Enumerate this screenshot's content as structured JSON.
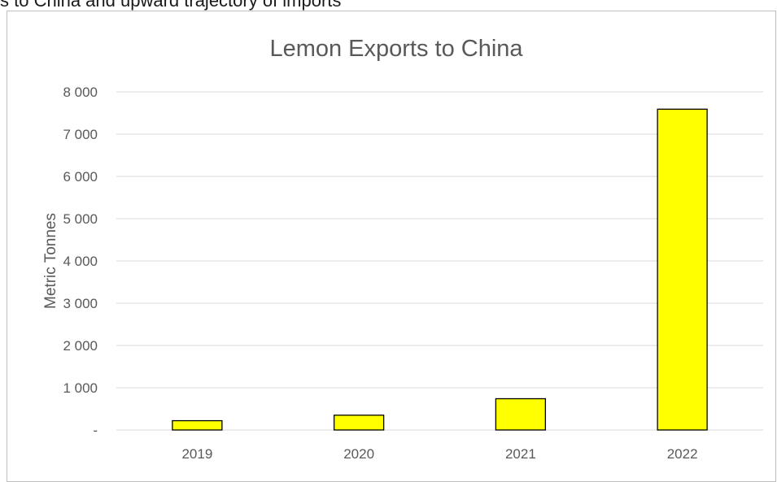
{
  "top_text": "s to China and upward trajectory of imports",
  "chart_data": {
    "type": "bar",
    "title": "Lemon Exports to China",
    "xlabel": "",
    "ylabel": "Metric Tonnes",
    "categories": [
      "2019",
      "2020",
      "2021",
      "2022"
    ],
    "values": [
      220,
      350,
      740,
      7590
    ],
    "ylim": [
      0,
      8000
    ],
    "yticks": [
      0,
      1000,
      2000,
      3000,
      4000,
      5000,
      6000,
      7000,
      8000
    ],
    "ytick_labels": [
      "-",
      "1 000",
      "2 000",
      "3 000",
      "4 000",
      "5 000",
      "6 000",
      "7 000",
      "8 000"
    ],
    "grid": true,
    "legend": "none",
    "colors": {
      "bar_fill": "#ffff00",
      "bar_stroke": "#000000",
      "grid": "#d9d9d9",
      "text": "#595959"
    }
  }
}
